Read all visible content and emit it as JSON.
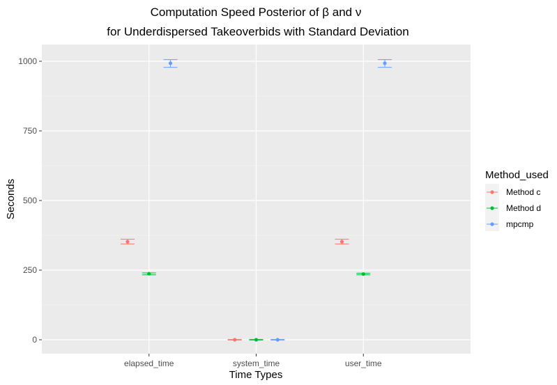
{
  "chart_data": {
    "type": "scatter",
    "title_line1": "Computation Speed Posterior of β and ν",
    "title_line2": "for Underdispersed Takeoverbids with Standard Deviation",
    "xlabel": "Time Types",
    "ylabel": "Seconds",
    "categories": [
      "elapsed_time",
      "system_time",
      "user_time"
    ],
    "ylim": [
      -50,
      1060
    ],
    "yticks": [
      0,
      250,
      500,
      750,
      1000
    ],
    "grid": true,
    "legend_position": "right",
    "legend_title": "Method_used",
    "series": [
      {
        "name": "Method c",
        "color": "#F8766D",
        "mean": [
          352,
          0,
          352
        ],
        "lower": [
          344,
          -1,
          344
        ],
        "upper": [
          361,
          1,
          361
        ]
      },
      {
        "name": "Method d",
        "color": "#00BA38",
        "mean": [
          237,
          0,
          236
        ],
        "lower": [
          233,
          -1,
          233
        ],
        "upper": [
          240,
          1,
          239
        ]
      },
      {
        "name": "mpcmp",
        "color": "#619CFF",
        "mean": [
          993,
          0,
          993
        ],
        "lower": [
          978,
          -1,
          978
        ],
        "upper": [
          1006,
          1,
          1006
        ]
      }
    ]
  }
}
